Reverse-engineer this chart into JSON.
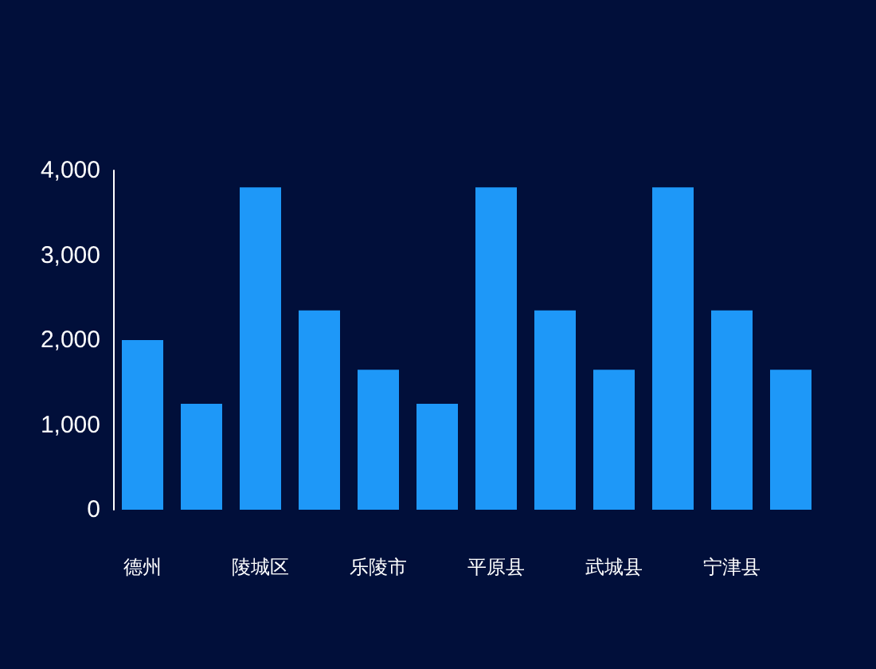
{
  "chart_data": {
    "type": "bar",
    "categories": [
      "德州",
      null,
      "陵城区",
      null,
      "乐陵市",
      null,
      "平原县",
      null,
      "武城县",
      null,
      "宁津县",
      null
    ],
    "values": [
      2000,
      1250,
      3800,
      2350,
      1650,
      1250,
      3800,
      2350,
      1650,
      3800,
      2350,
      1650
    ],
    "color": "#1e98f8",
    "ylim": [
      0,
      4000
    ],
    "yticks": [
      0,
      {
        "value": 1000,
        "label": "1,000"
      },
      {
        "value": 2000,
        "label": "2,000"
      },
      {
        "value": 3000,
        "label": "3,000"
      },
      {
        "value": 4000,
        "label": "4,000"
      }
    ]
  }
}
